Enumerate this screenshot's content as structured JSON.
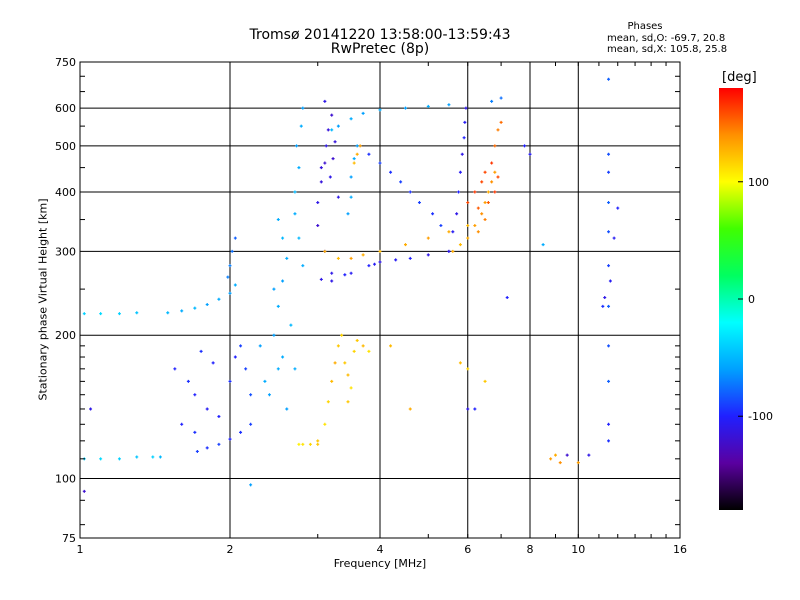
{
  "header": {
    "title_line1": "Tromsø 20141220 13:58:00-13:59:43",
    "title_line2": "RwPretec (8p)"
  },
  "phases": {
    "title": "Phases",
    "o_mode": "mean, sd,O: -69.7, 20.8",
    "x_mode": "mean, sd,X: 105.8, 25.8"
  },
  "colorbar": {
    "unit_label": "[deg]",
    "ticks": [
      {
        "value": 100,
        "label": "100"
      },
      {
        "value": 0,
        "label": "0"
      },
      {
        "value": -100,
        "label": "-100"
      }
    ],
    "range": [
      -180,
      180
    ],
    "colormap": [
      "#000000",
      "#5a00a0",
      "#2020ff",
      "#00a0ff",
      "#00ffff",
      "#00ff60",
      "#40ff00",
      "#ffff00",
      "#ff9000",
      "#ff0000"
    ]
  },
  "chart_data": {
    "type": "scatter",
    "xlabel": "Frequency [MHz]",
    "ylabel": "Stationary phase Virtual Height [km]",
    "x_scale": "log",
    "y_scale": "log",
    "xlim": [
      1,
      16
    ],
    "ylim": [
      75,
      750
    ],
    "x_ticks": [
      {
        "value": 1,
        "label": "1"
      },
      {
        "value": 2,
        "label": "2"
      },
      {
        "value": 4,
        "label": "4"
      },
      {
        "value": 6,
        "label": "6"
      },
      {
        "value": 8,
        "label": "8"
      },
      {
        "value": 10,
        "label": "10"
      },
      {
        "value": 16,
        "label": "16"
      }
    ],
    "y_ticks": [
      {
        "value": 75,
        "label": "75"
      },
      {
        "value": 100,
        "label": "100"
      },
      {
        "value": 200,
        "label": "200"
      },
      {
        "value": 300,
        "label": "300"
      },
      {
        "value": 400,
        "label": "400"
      },
      {
        "value": 500,
        "label": "500"
      },
      {
        "value": 600,
        "label": "600"
      },
      {
        "value": 750,
        "label": "750"
      }
    ],
    "grid": true,
    "series": [
      {
        "values": [
          [
            1.02,
            110,
            -40
          ],
          [
            1.1,
            110,
            -35
          ],
          [
            1.2,
            110,
            -40
          ],
          [
            1.3,
            111,
            -45
          ],
          [
            1.4,
            111,
            -40
          ],
          [
            1.45,
            111,
            -50
          ],
          [
            1.02,
            222,
            -40
          ],
          [
            1.1,
            222,
            -35
          ],
          [
            1.2,
            222,
            -40
          ],
          [
            1.3,
            223,
            -45
          ],
          [
            1.5,
            223,
            -50
          ],
          [
            1.6,
            225,
            -55
          ],
          [
            1.7,
            228,
            -50
          ],
          [
            1.8,
            232,
            -60
          ],
          [
            1.9,
            238,
            -55
          ],
          [
            2.0,
            245,
            -60
          ],
          [
            2.05,
            255,
            -55
          ],
          [
            2.0,
            280,
            -70
          ],
          [
            2.02,
            300,
            -75
          ],
          [
            2.05,
            320,
            -80
          ],
          [
            1.98,
            265,
            -70
          ],
          [
            1.72,
            114,
            -90
          ],
          [
            1.8,
            116,
            -95
          ],
          [
            1.9,
            118,
            -90
          ],
          [
            2.0,
            121,
            -100
          ],
          [
            2.1,
            125,
            -95
          ],
          [
            2.2,
            130,
            -90
          ],
          [
            1.55,
            170,
            -100
          ],
          [
            1.65,
            160,
            -95
          ],
          [
            1.7,
            150,
            -100
          ],
          [
            1.8,
            140,
            -105
          ],
          [
            1.9,
            135,
            -100
          ],
          [
            2.0,
            160,
            -95
          ],
          [
            2.05,
            180,
            -100
          ],
          [
            2.1,
            190,
            -90
          ],
          [
            1.6,
            130,
            -100
          ],
          [
            1.7,
            125,
            -95
          ],
          [
            1.85,
            175,
            -100
          ],
          [
            1.75,
            185,
            -95
          ],
          [
            2.15,
            170,
            -90
          ],
          [
            2.2,
            150,
            -85
          ],
          [
            2.4,
            150,
            -60
          ],
          [
            2.5,
            170,
            -55
          ],
          [
            2.45,
            200,
            -60
          ],
          [
            2.5,
            230,
            -55
          ],
          [
            2.55,
            260,
            -60
          ],
          [
            2.6,
            290,
            -55
          ],
          [
            2.55,
            320,
            -50
          ],
          [
            2.5,
            350,
            -55
          ],
          [
            2.45,
            250,
            -60
          ],
          [
            2.55,
            180,
            -55
          ],
          [
            2.6,
            140,
            -60
          ],
          [
            2.65,
            210,
            -50
          ],
          [
            2.35,
            160,
            -55
          ],
          [
            2.3,
            190,
            -60
          ],
          [
            2.7,
            170,
            -55
          ],
          [
            2.7,
            400,
            -50
          ],
          [
            2.75,
            450,
            -55
          ],
          [
            2.72,
            500,
            -60
          ],
          [
            2.78,
            550,
            -55
          ],
          [
            2.8,
            600,
            -60
          ],
          [
            2.7,
            360,
            -55
          ],
          [
            2.75,
            320,
            -50
          ],
          [
            2.8,
            280,
            -55
          ],
          [
            2.8,
            118,
            110
          ],
          [
            2.9,
            118,
            115
          ],
          [
            3.0,
            118,
            120
          ],
          [
            2.75,
            118,
            105
          ],
          [
            3.0,
            120,
            120
          ],
          [
            3.1,
            130,
            110
          ],
          [
            3.15,
            145,
            115
          ],
          [
            3.2,
            160,
            125
          ],
          [
            3.25,
            175,
            130
          ],
          [
            3.3,
            190,
            120
          ],
          [
            3.35,
            200,
            115
          ],
          [
            3.4,
            175,
            120
          ],
          [
            3.45,
            165,
            125
          ],
          [
            3.5,
            155,
            110
          ],
          [
            3.45,
            145,
            120
          ],
          [
            3.55,
            185,
            115
          ],
          [
            3.6,
            195,
            120
          ],
          [
            3.7,
            190,
            125
          ],
          [
            3.8,
            185,
            110
          ],
          [
            3.0,
            380,
            -110
          ],
          [
            3.05,
            420,
            -115
          ],
          [
            3.1,
            460,
            -120
          ],
          [
            3.12,
            500,
            -110
          ],
          [
            3.15,
            540,
            -115
          ],
          [
            3.2,
            580,
            -120
          ],
          [
            3.1,
            620,
            -110
          ],
          [
            3.05,
            450,
            -115
          ],
          [
            3.18,
            430,
            -110
          ],
          [
            3.22,
            470,
            -120
          ],
          [
            3.25,
            510,
            -115
          ],
          [
            3.3,
            390,
            -110
          ],
          [
            3.0,
            340,
            -120
          ],
          [
            3.1,
            300,
            -115
          ],
          [
            3.2,
            270,
            -110
          ],
          [
            3.3,
            550,
            -60
          ],
          [
            3.5,
            570,
            -55
          ],
          [
            3.7,
            585,
            -60
          ],
          [
            4.0,
            595,
            -55
          ],
          [
            4.5,
            600,
            -60
          ],
          [
            5.0,
            605,
            -55
          ],
          [
            5.5,
            610,
            -60
          ],
          [
            3.2,
            540,
            -50
          ],
          [
            3.5,
            430,
            -60
          ],
          [
            3.55,
            470,
            -55
          ],
          [
            3.6,
            500,
            -60
          ],
          [
            3.5,
            390,
            -55
          ],
          [
            3.45,
            360,
            -60
          ],
          [
            3.6,
            480,
            130
          ],
          [
            3.65,
            500,
            135
          ],
          [
            3.55,
            460,
            125
          ],
          [
            3.1,
            300,
            130
          ],
          [
            3.3,
            290,
            125
          ],
          [
            3.5,
            290,
            135
          ],
          [
            3.7,
            295,
            130
          ],
          [
            4.0,
            300,
            125
          ],
          [
            4.5,
            310,
            130
          ],
          [
            5.0,
            320,
            135
          ],
          [
            5.5,
            330,
            130
          ],
          [
            6.0,
            340,
            125
          ],
          [
            3.2,
            260,
            -110
          ],
          [
            3.5,
            270,
            -105
          ],
          [
            3.8,
            280,
            -100
          ],
          [
            4.0,
            285,
            -110
          ],
          [
            4.3,
            288,
            -105
          ],
          [
            4.6,
            290,
            -100
          ],
          [
            5.0,
            295,
            -110
          ],
          [
            5.5,
            300,
            -105
          ],
          [
            3.05,
            262,
            -110
          ],
          [
            3.4,
            268,
            -100
          ],
          [
            3.9,
            282,
            -105
          ],
          [
            5.5,
            300,
            -110
          ],
          [
            5.6,
            330,
            -105
          ],
          [
            5.7,
            360,
            -110
          ],
          [
            5.75,
            400,
            -100
          ],
          [
            5.8,
            440,
            -105
          ],
          [
            5.85,
            480,
            -110
          ],
          [
            5.9,
            520,
            -100
          ],
          [
            5.92,
            560,
            -105
          ],
          [
            5.95,
            600,
            -110
          ],
          [
            5.3,
            340,
            -90
          ],
          [
            5.1,
            360,
            -95
          ],
          [
            4.8,
            380,
            -90
          ],
          [
            4.6,
            400,
            -95
          ],
          [
            4.4,
            420,
            -90
          ],
          [
            4.2,
            440,
            -95
          ],
          [
            4.0,
            460,
            -90
          ],
          [
            3.8,
            480,
            -95
          ],
          [
            5.6,
            300,
            130
          ],
          [
            5.8,
            310,
            125
          ],
          [
            6.0,
            320,
            130
          ],
          [
            6.2,
            340,
            135
          ],
          [
            6.4,
            360,
            140
          ],
          [
            6.5,
            380,
            135
          ],
          [
            6.6,
            400,
            130
          ],
          [
            6.7,
            420,
            140
          ],
          [
            6.8,
            440,
            135
          ],
          [
            6.5,
            350,
            145
          ],
          [
            6.3,
            330,
            140
          ],
          [
            6.0,
            380,
            160
          ],
          [
            6.2,
            400,
            165
          ],
          [
            6.4,
            420,
            160
          ],
          [
            6.6,
            380,
            155
          ],
          [
            6.8,
            400,
            165
          ],
          [
            6.5,
            440,
            160
          ],
          [
            6.7,
            460,
            165
          ],
          [
            6.9,
            430,
            160
          ],
          [
            6.3,
            370,
            155
          ],
          [
            6.8,
            500,
            150
          ],
          [
            6.9,
            540,
            145
          ],
          [
            7.0,
            560,
            150
          ],
          [
            6.7,
            620,
            -70
          ],
          [
            7.0,
            630,
            -75
          ],
          [
            8.8,
            110,
            135
          ],
          [
            9.0,
            112,
            130
          ],
          [
            9.2,
            108,
            140
          ],
          [
            9.5,
            112,
            -120
          ],
          [
            10.0,
            108,
            135
          ],
          [
            10.5,
            112,
            -110
          ],
          [
            7.8,
            500,
            -100
          ],
          [
            8.0,
            480,
            -105
          ],
          [
            7.2,
            240,
            -100
          ],
          [
            8.5,
            310,
            -55
          ],
          [
            11.5,
            690,
            -80
          ],
          [
            11.5,
            480,
            -85
          ],
          [
            11.5,
            440,
            -90
          ],
          [
            11.5,
            380,
            -80
          ],
          [
            11.5,
            330,
            -85
          ],
          [
            11.5,
            280,
            -90
          ],
          [
            11.5,
            230,
            -80
          ],
          [
            11.5,
            190,
            -85
          ],
          [
            11.5,
            160,
            -80
          ],
          [
            11.5,
            130,
            -100
          ],
          [
            11.5,
            120,
            -95
          ],
          [
            11.3,
            240,
            -110
          ],
          [
            11.8,
            320,
            -105
          ],
          [
            12.0,
            370,
            -100
          ],
          [
            11.2,
            230,
            -95
          ],
          [
            11.6,
            260,
            -105
          ],
          [
            6.5,
            160,
            120
          ],
          [
            6.0,
            170,
            115
          ],
          [
            5.8,
            175,
            125
          ],
          [
            4.6,
            140,
            130
          ],
          [
            4.2,
            190,
            125
          ],
          [
            6.0,
            140,
            -110
          ],
          [
            6.2,
            140,
            -100
          ],
          [
            2.2,
            97,
            -60
          ],
          [
            1.02,
            94,
            -120
          ],
          [
            1.05,
            140,
            -110
          ]
        ]
      }
    ]
  }
}
